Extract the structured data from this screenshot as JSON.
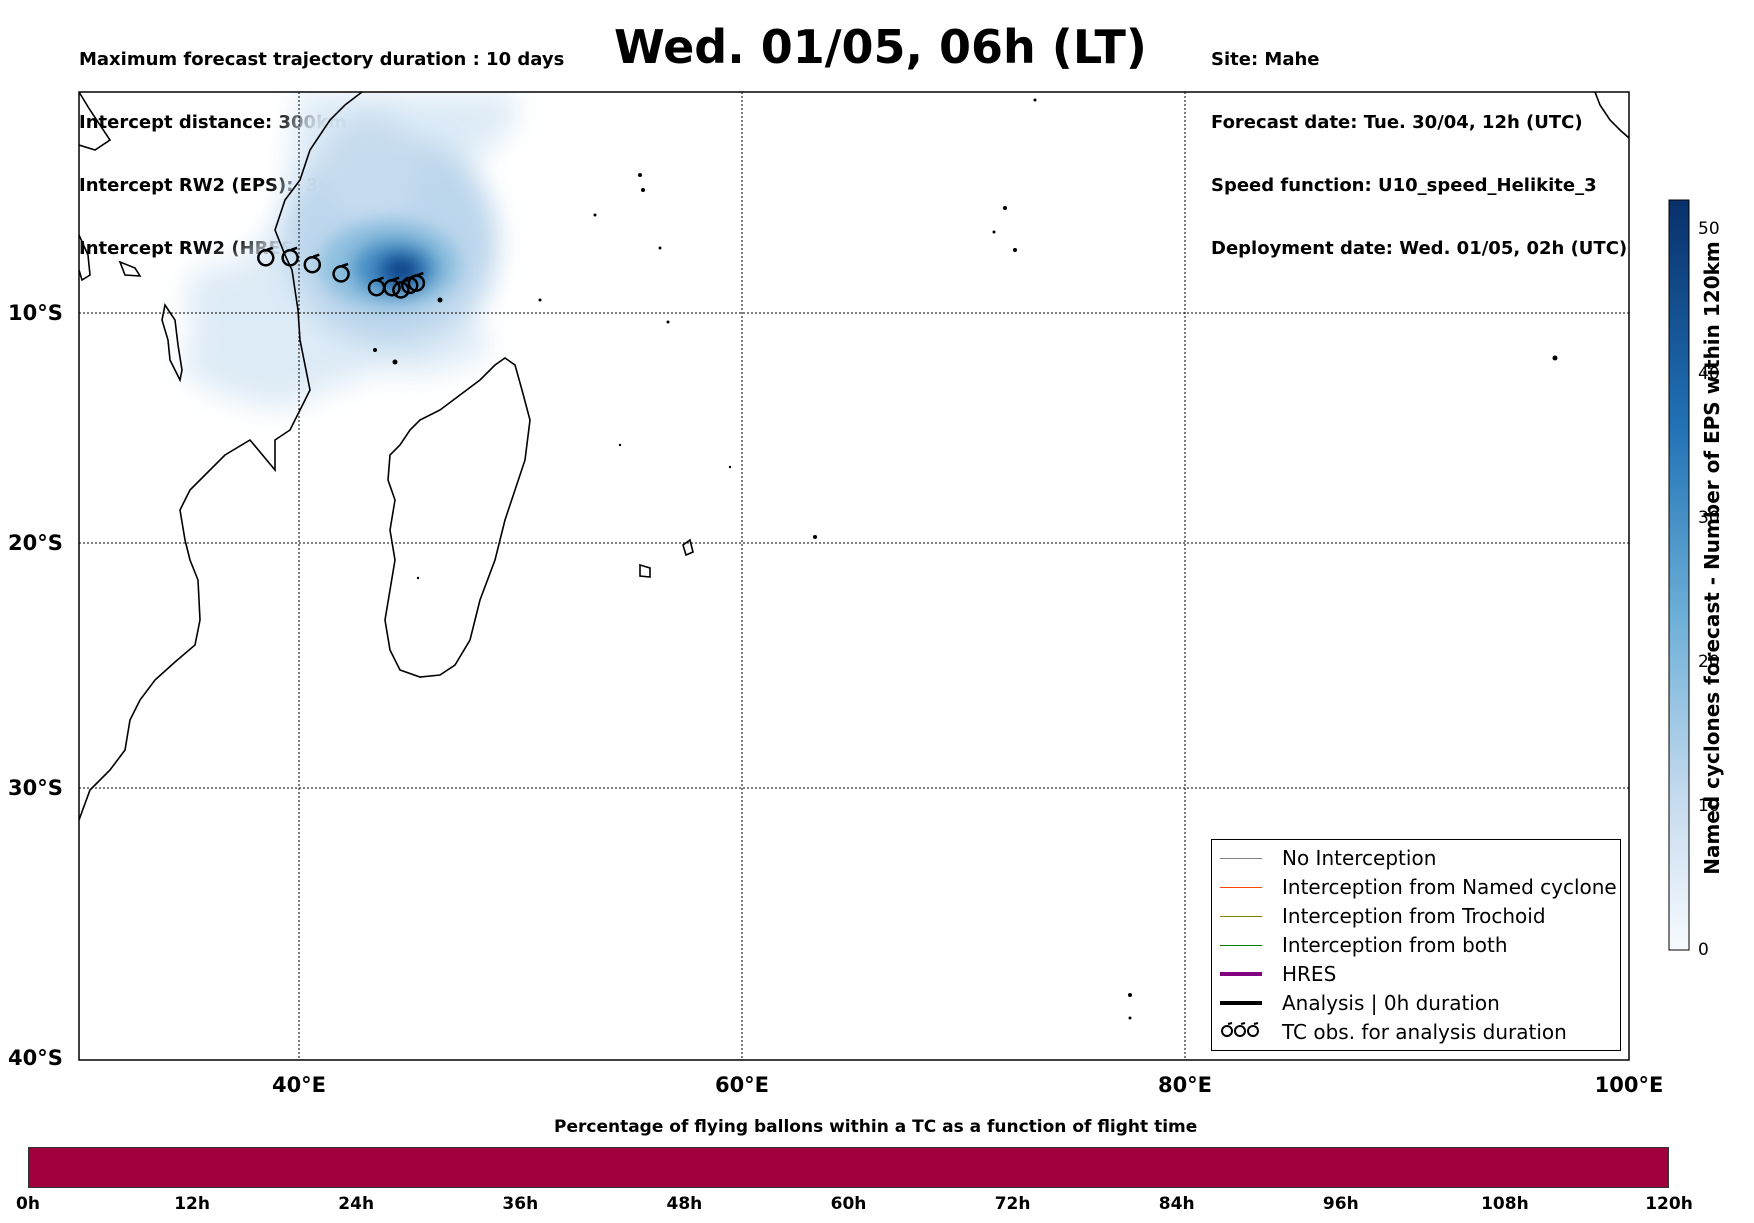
{
  "header_left": [
    "Maximum forecast trajectory duration : 10 days",
    "Intercept distance: 300km",
    "Intercept RW2 (EPS):  30km/h2",
    "Intercept RW2 (HRES): 30km/h2"
  ],
  "title": "Wed. 01/05, 06h (LT)",
  "header_right": [
    "Site: Mahe",
    "Forecast date: Tue. 30/04, 12h (UTC)",
    "Speed function: U10_speed_Helikite_3",
    "Deployment date: Wed. 01/05, 02h (UTC)"
  ],
  "x_ticks": [
    "40°E",
    "60°E",
    "80°E",
    "100°E"
  ],
  "y_ticks": [
    "10°S",
    "20°S",
    "30°S",
    "40°S"
  ],
  "colorbar": {
    "label": "Named cyclones forecast - Number of EPS within 120km",
    "ticks": [
      "0",
      "10",
      "20",
      "30",
      "40",
      "50"
    ],
    "colors": [
      "#f7fbff",
      "#08306b"
    ]
  },
  "legend": [
    {
      "label": "No Interception",
      "color": "#808080"
    },
    {
      "label": "Interception from Named cyclone",
      "color": "#ff4500"
    },
    {
      "label": "Interception from Trochoid",
      "color": "#808000"
    },
    {
      "label": "Interception from both",
      "color": "#008000"
    },
    {
      "label": "HRES",
      "color": "#800080"
    },
    {
      "label": "Analysis | 0h duration",
      "color": "#000000"
    },
    {
      "label": "TC obs. for analysis duration",
      "color": "#000000",
      "symbol": "tc-symbol"
    }
  ],
  "cyclone_obs_lonlat": [
    [
      38.5,
      -7.6
    ],
    [
      39.6,
      -7.6
    ],
    [
      40.6,
      -7.9
    ],
    [
      41.9,
      -8.3
    ],
    [
      43.5,
      -8.9
    ],
    [
      44.2,
      -8.9
    ],
    [
      44.6,
      -9.0
    ],
    [
      45.0,
      -8.8
    ],
    [
      45.3,
      -8.7
    ]
  ],
  "pct_bar": {
    "title": "Percentage of flying ballons within a TC as a function of flight time",
    "ticks": [
      "0h",
      "12h",
      "24h",
      "36h",
      "48h",
      "60h",
      "72h",
      "84h",
      "96h",
      "108h",
      "120h"
    ],
    "color": "#a0003e"
  }
}
